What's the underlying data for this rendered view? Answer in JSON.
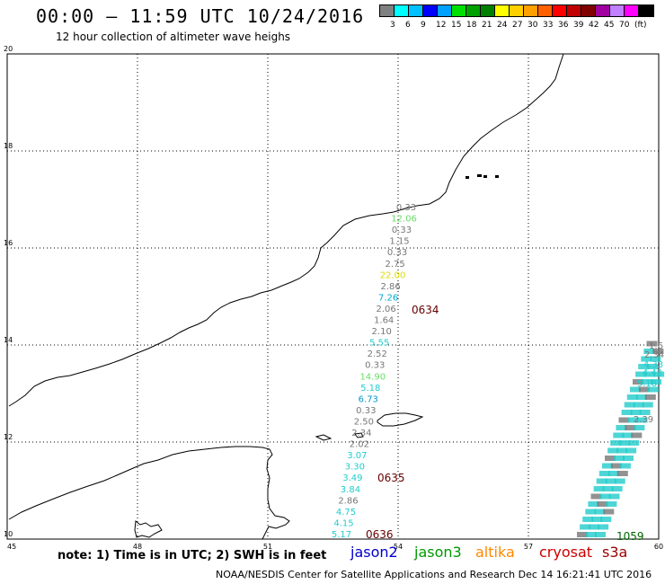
{
  "header": {
    "title": "00:00 — 11:59 UTC 10/24/2016",
    "subtitle": "12 hour collection of altimeter wave heighs"
  },
  "legend": {
    "colors": [
      "#808080",
      "#00ffff",
      "#00c0ff",
      "#0000ff",
      "#00a0ff",
      "#00e000",
      "#00a000",
      "#008000",
      "#ffff00",
      "#ffd000",
      "#ffa000",
      "#ff6000",
      "#ff0000",
      "#c00000",
      "#800000",
      "#a000a0",
      "#c080ff",
      "#ff00ff",
      "#000000"
    ],
    "labels": [
      "3",
      "6",
      "9",
      "12",
      "15",
      "18",
      "21",
      "24",
      "27",
      "30",
      "33",
      "36",
      "39",
      "42",
      "45",
      "70",
      "(ft)"
    ]
  },
  "axes": {
    "x_ticks": [
      "45",
      "48",
      "51",
      "54",
      "57",
      "60"
    ],
    "y_ticks": [
      "20",
      "18",
      "16",
      "14",
      "12",
      "10"
    ]
  },
  "track1": {
    "values": [
      "0.33",
      "12.06",
      "0.33",
      "1.15",
      "0.33",
      "2.75",
      "22.00",
      "2.86",
      "7.26",
      "2.06",
      "1.64",
      "2.10",
      "5.55",
      "2.52",
      "0.33",
      "14.90",
      "5.18",
      "6.73",
      "0.33",
      "2.50",
      "2.34",
      "2.02",
      "3.07",
      "3.30",
      "3.49",
      "3.84",
      "2.86",
      "4.75",
      "4.15",
      "5.17"
    ],
    "colors": [
      "#777777",
      "#66dd66",
      "#777777",
      "#777777",
      "#777777",
      "#777777",
      "#dddd00",
      "#777777",
      "#00aacc",
      "#777777",
      "#777777",
      "#777777",
      "#22cccc",
      "#777777",
      "#777777",
      "#66dd66",
      "#22cccc",
      "#0099cc",
      "#777777",
      "#777777",
      "#777777",
      "#777777",
      "#22cccc",
      "#22cccc",
      "#22cccc",
      "#22cccc",
      "#777777",
      "#22cccc",
      "#22cccc",
      "#22cccc"
    ],
    "times": [
      "0634",
      "0635",
      "0636"
    ]
  },
  "track2": {
    "values": [
      "2.39",
      "5.18",
      "4.42",
      "4.33",
      "2.34",
      "1.6"
    ],
    "colors": [
      "#777777",
      "#22cccc",
      "#22cccc",
      "#22cccc",
      "#777777",
      "#777777"
    ],
    "time": "1059"
  },
  "footer": {
    "note": "note: 1) Time is in UTC; 2) SWH is in feet",
    "satellites": [
      "jason2",
      "jason3",
      "altika",
      "cryosat",
      "s3a"
    ],
    "satellite_colors": [
      "#0000cc",
      "#009900",
      "#ff8800",
      "#cc0000",
      "#990000"
    ],
    "credit": "NOAA/NESDIS Center for Satellite Applications and Research    Dec 14 16:21:41 UTC 2016"
  }
}
